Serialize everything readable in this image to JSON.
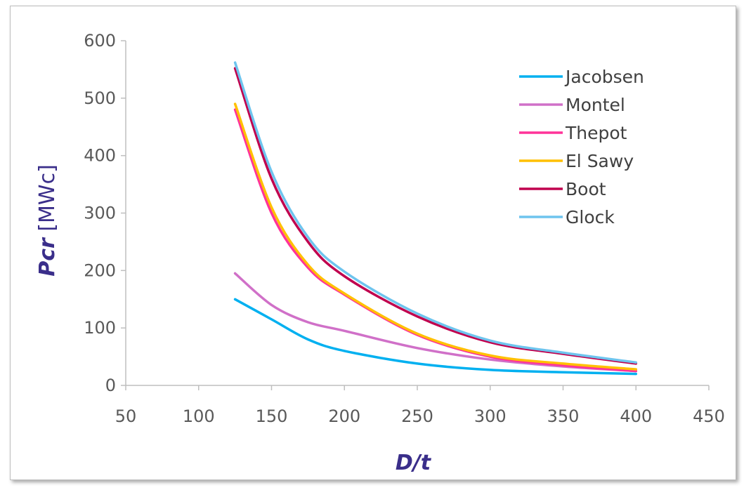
{
  "chart_data": {
    "type": "line",
    "title": "",
    "xlabel": "D/t",
    "ylabel_italic": "Pcr",
    "ylabel_rest": " [MWc]",
    "xlim": [
      50,
      450
    ],
    "ylim": [
      0,
      600
    ],
    "xticks": [
      50,
      100,
      150,
      200,
      250,
      300,
      350,
      400,
      450
    ],
    "yticks": [
      0,
      100,
      200,
      300,
      400,
      500,
      600
    ],
    "legend_position": "top-right",
    "grid": false,
    "series": [
      {
        "name": "Jacobsen",
        "color": "#00b0f0",
        "x": [
          125,
          150,
          175,
          200,
          250,
          300,
          350,
          400
        ],
        "y": [
          150,
          115,
          80,
          60,
          38,
          27,
          23,
          20
        ]
      },
      {
        "name": "Montel",
        "color": "#d070c8",
        "x": [
          125,
          150,
          175,
          200,
          250,
          300,
          350,
          400
        ],
        "y": [
          195,
          140,
          110,
          95,
          65,
          45,
          33,
          25
        ]
      },
      {
        "name": "Thepot",
        "color": "#ff3399",
        "x": [
          125,
          150,
          175,
          200,
          250,
          300,
          350,
          400
        ],
        "y": [
          480,
          300,
          205,
          158,
          88,
          50,
          35,
          25
        ]
      },
      {
        "name": "El Sawy",
        "color": "#ffc000",
        "x": [
          125,
          150,
          175,
          200,
          250,
          300,
          350,
          400
        ],
        "y": [
          490,
          310,
          210,
          160,
          90,
          52,
          38,
          28
        ]
      },
      {
        "name": "Boot",
        "color": "#c0004e",
        "x": [
          125,
          150,
          175,
          200,
          250,
          300,
          350,
          400
        ],
        "y": [
          552,
          360,
          250,
          190,
          120,
          75,
          55,
          38
        ]
      },
      {
        "name": "Glock",
        "color": "#6ec4ee",
        "x": [
          125,
          150,
          175,
          200,
          250,
          300,
          350,
          400
        ],
        "y": [
          562,
          372,
          258,
          198,
          125,
          78,
          57,
          40
        ]
      }
    ]
  }
}
